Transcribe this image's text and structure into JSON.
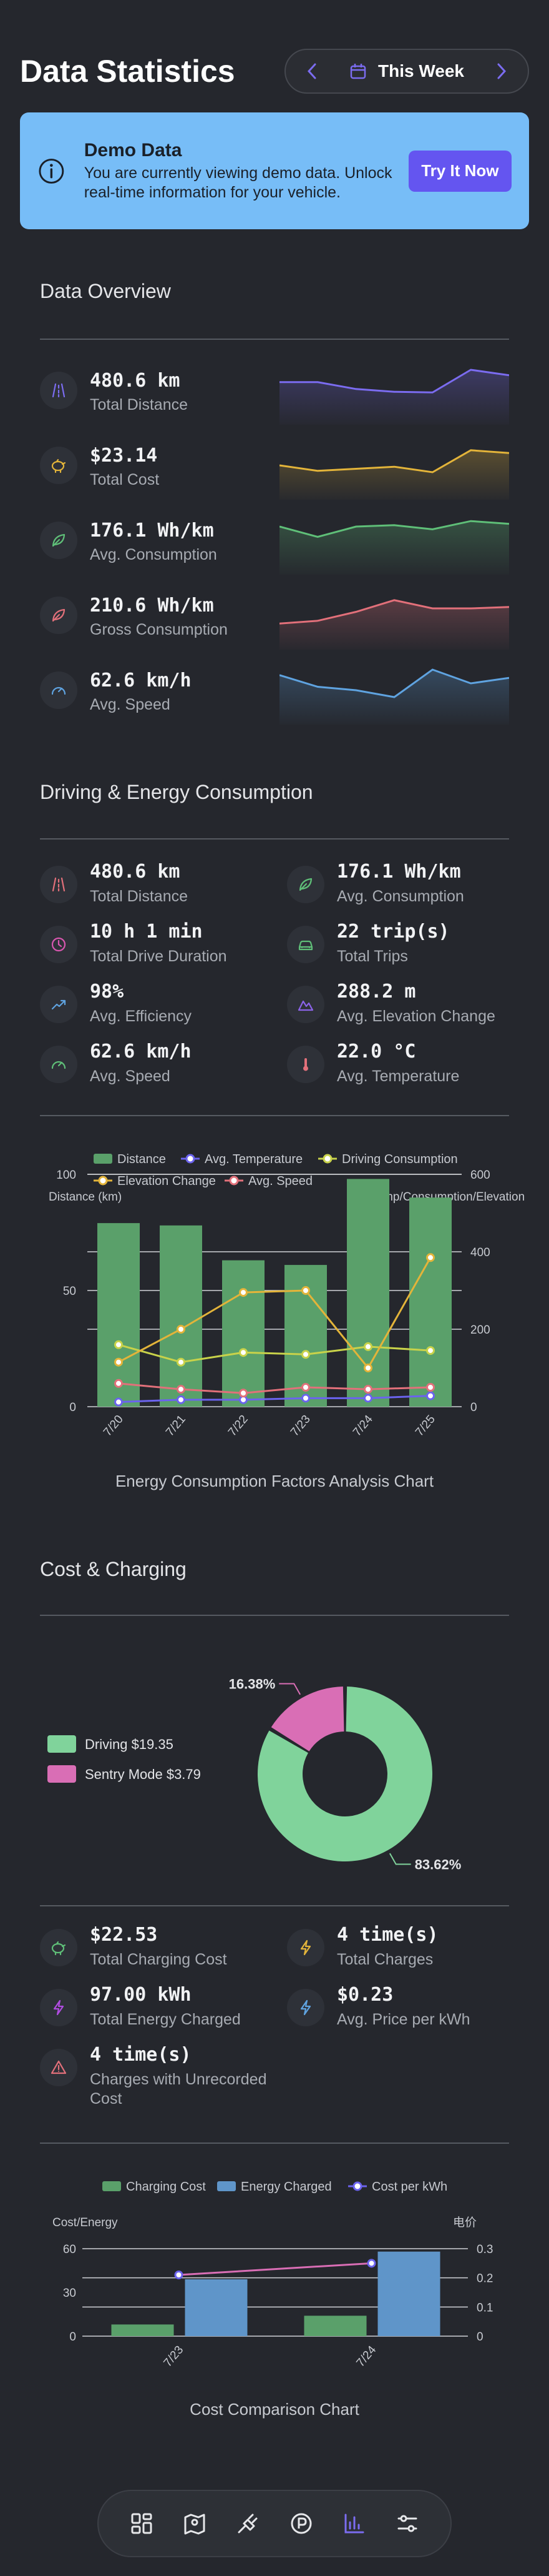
{
  "header": {
    "title": "Data Statistics",
    "period": "This Week"
  },
  "demo": {
    "title": "Demo Data",
    "body": "You are currently viewing demo data. Unlock real-time information for your vehicle.",
    "button": "Try It Now"
  },
  "overview": {
    "title": "Data Overview",
    "items": [
      {
        "value": "480.6 km",
        "label": "Total Distance",
        "color": "#7b6cf0",
        "icon": "road-icon",
        "trend": [
          0.62,
          0.62,
          0.52,
          0.48,
          0.47,
          0.8,
          0.72
        ]
      },
      {
        "value": "$23.14",
        "label": "Total Cost",
        "color": "#e3b43a",
        "icon": "piggy-bank-icon",
        "trend": [
          0.5,
          0.42,
          0.45,
          0.48,
          0.4,
          0.72,
          0.68
        ]
      },
      {
        "value": "176.1 Wh/km",
        "label": "Avg. Consumption",
        "color": "#5fbf78",
        "icon": "leaf-icon",
        "trend": [
          0.7,
          0.55,
          0.7,
          0.72,
          0.66,
          0.78,
          0.74
        ]
      },
      {
        "value": "210.6 Wh/km",
        "label": "Gross Consumption",
        "color": "#e2707a",
        "icon": "leaf-icon",
        "trend": [
          0.38,
          0.42,
          0.55,
          0.72,
          0.6,
          0.6,
          0.62
        ]
      },
      {
        "value": "62.6 km/h",
        "label": "Avg. Speed",
        "color": "#5fa3e0",
        "icon": "speedometer-icon",
        "trend": [
          0.72,
          0.55,
          0.5,
          0.4,
          0.8,
          0.6,
          0.68
        ]
      }
    ]
  },
  "driving": {
    "title": "Driving & Energy Consumption",
    "stats": [
      {
        "value": "480.6 km",
        "label": "Total Distance",
        "icon": "road-icon",
        "color": "#e2707a"
      },
      {
        "value": "176.1 Wh/km",
        "label": "Avg. Consumption",
        "icon": "leaf-icon",
        "color": "#5fbf78"
      },
      {
        "value": "10 h 1 min",
        "label": "Total Drive Duration",
        "icon": "clock-icon",
        "color": "#d957b0"
      },
      {
        "value": "22 trip(s)",
        "label": "Total Trips",
        "icon": "car-icon",
        "color": "#5fbf78"
      },
      {
        "value": "98%",
        "label": "Avg. Efficiency",
        "icon": "trend-up-icon",
        "color": "#5fa3e0"
      },
      {
        "value": "288.2 m",
        "label": "Avg. Elevation Change",
        "icon": "mountain-icon",
        "color": "#8b63e8"
      },
      {
        "value": "62.6 km/h",
        "label": "Avg. Speed",
        "icon": "speedometer-icon",
        "color": "#5fbf78"
      },
      {
        "value": "22.0 °C",
        "label": "Avg. Temperature",
        "icon": "thermometer-icon",
        "color": "#e2707a"
      }
    ],
    "caption": "Energy Consumption Factors Analysis Chart"
  },
  "cost": {
    "title": "Cost & Charging",
    "stats": [
      {
        "value": "$22.53",
        "label": "Total Charging Cost",
        "icon": "piggy-bank-icon",
        "color": "#5fbf78"
      },
      {
        "value": "4 time(s)",
        "label": "Total Charges",
        "icon": "lightning-icon",
        "color": "#e3b43a"
      },
      {
        "value": "97.00 kWh",
        "label": "Total Energy Charged",
        "icon": "lightning-icon",
        "color": "#b04ce0"
      },
      {
        "value": "$0.23",
        "label": "Avg. Price per kWh",
        "icon": "lightning-icon",
        "color": "#5fa3e0"
      },
      {
        "value": "4 time(s)",
        "label": "Charges with Unrecorded Cost",
        "icon": "warning-icon",
        "color": "#e2707a"
      }
    ],
    "caption": "Cost Comparison Chart"
  },
  "nav": [
    "dashboard-icon",
    "map-pin-icon",
    "charging-plug-icon",
    "parking-icon",
    "statistics-icon",
    "settings-sliders-icon"
  ],
  "chart_data": [
    {
      "type": "bar",
      "categories": [
        "7/20",
        "7/21",
        "7/22",
        "7/23",
        "7/24",
        "7/25"
      ],
      "legend": [
        "Distance",
        "Avg. Temperature",
        "Driving Consumption",
        "Elevation Change",
        "Avg. Speed"
      ],
      "ylabel": "Distance (km)",
      "y2label": "Temp/Consumption/Elevation",
      "ylim": [
        0,
        100
      ],
      "y2lim": [
        0,
        600
      ],
      "yticks": [
        0,
        50,
        100
      ],
      "y2ticks": [
        0,
        200,
        400,
        600
      ],
      "series": [
        {
          "name": "Distance",
          "kind": "bar",
          "axis": "left",
          "color": "#5aa06a",
          "values": [
            79,
            78,
            63,
            61,
            98,
            90
          ]
        },
        {
          "name": "Avg. Temperature",
          "kind": "line",
          "axis": "right",
          "color": "#6b63ee",
          "values": [
            12,
            18,
            18,
            22,
            22,
            28
          ]
        },
        {
          "name": "Driving Consumption",
          "kind": "line",
          "axis": "right",
          "color": "#c8d24a",
          "values": [
            160,
            115,
            140,
            135,
            155,
            145
          ]
        },
        {
          "name": "Elevation Change",
          "kind": "line",
          "axis": "right",
          "color": "#e3b43a",
          "values": [
            115,
            200,
            295,
            300,
            100,
            385
          ]
        },
        {
          "name": "Avg. Speed",
          "kind": "line",
          "axis": "right",
          "color": "#e2707a",
          "values": [
            60,
            45,
            35,
            50,
            45,
            50
          ]
        }
      ]
    },
    {
      "type": "pie",
      "legend": [
        "Driving $19.35",
        "Sentry Mode $3.79"
      ],
      "slices": [
        {
          "name": "Driving",
          "value": 19.35,
          "percent": "83.62%",
          "color": "#80d39b"
        },
        {
          "name": "Sentry Mode",
          "value": 3.79,
          "percent": "16.38%",
          "color": "#d96eb5"
        }
      ]
    },
    {
      "type": "bar",
      "categories": [
        "7/23",
        "7/24"
      ],
      "legend": [
        "Charging Cost",
        "Energy Charged",
        "Cost per kWh"
      ],
      "ylabel": "Cost/Energy",
      "y2label": "电价",
      "ylim": [
        0,
        60
      ],
      "y2lim": [
        0,
        0.3
      ],
      "yticks": [
        0,
        30,
        60
      ],
      "y2ticks": [
        0,
        0.1,
        0.2,
        0.3
      ],
      "series": [
        {
          "name": "Charging Cost",
          "kind": "bar",
          "axis": "left",
          "color": "#5aa06a",
          "values": [
            8,
            14
          ]
        },
        {
          "name": "Energy Charged",
          "kind": "bar",
          "axis": "left",
          "color": "#5f95c9",
          "values": [
            39,
            58
          ]
        },
        {
          "name": "Cost per kWh",
          "kind": "line",
          "axis": "right",
          "color": "#d96eb5",
          "values": [
            0.21,
            0.25
          ]
        }
      ]
    }
  ]
}
